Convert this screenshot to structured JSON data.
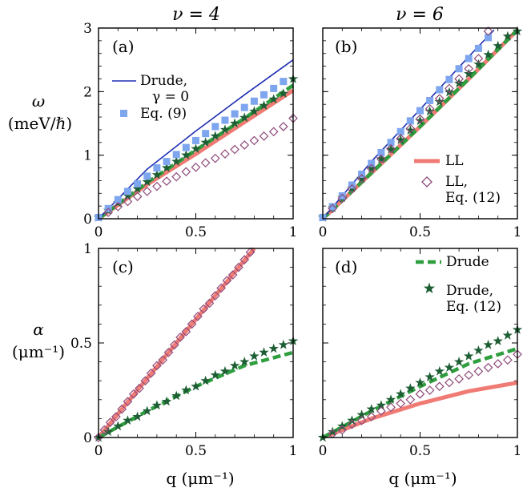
{
  "column_titles": [
    "ν = 4",
    "ν = 6"
  ],
  "ylabels": {
    "omega": {
      "symbol": "ω",
      "unit": "(meV/ℏ)"
    },
    "alpha": {
      "symbol": "α",
      "unit": "(μm⁻¹)"
    }
  },
  "xlabel": "q (μm⁻¹)",
  "legend_labels": {
    "drude_gamma0": [
      "Drude,",
      "γ = 0"
    ],
    "eq9": "Eq. (9)",
    "ll": "LL",
    "ll_eq12": [
      "LL,",
      "Eq. (12)"
    ],
    "drude": "Drude",
    "drude_eq12": [
      "Drude,",
      "Eq. (12)"
    ]
  },
  "colors": {
    "drude_gamma0": "#1f2fb3",
    "eq9": "#7ea6ef",
    "drude_eq12": "#1e5e34",
    "drude": "#2e9e3e",
    "ll": "#f07a74",
    "ll_eq12": "#8e4a7a"
  },
  "chart_data": [
    {
      "type": "line",
      "panel": "(a)",
      "title": "ν = 4",
      "xlim": [
        0,
        1
      ],
      "ylim": [
        0,
        3
      ],
      "xticks": [
        "0",
        "0.5",
        "1"
      ],
      "yticks": [
        "0",
        "1",
        "2",
        "3"
      ],
      "series": [
        {
          "key": "drude_gamma0",
          "name": "Drude, γ = 0",
          "style": "line",
          "x": [
            0,
            0.25,
            0.5,
            0.75,
            1.0
          ],
          "y": [
            0,
            0.78,
            1.38,
            1.95,
            2.5
          ]
        },
        {
          "key": "eq9",
          "name": "Eq. (9)",
          "style": "square",
          "x": [
            0,
            0.05,
            0.1,
            0.15,
            0.2,
            0.25,
            0.3,
            0.35,
            0.4,
            0.45,
            0.5,
            0.55,
            0.6,
            0.65,
            0.7,
            0.75,
            0.8,
            0.85,
            0.9,
            0.95
          ],
          "y": [
            0.02,
            0.16,
            0.3,
            0.43,
            0.55,
            0.67,
            0.8,
            0.9,
            1.01,
            1.12,
            1.23,
            1.34,
            1.45,
            1.55,
            1.65,
            1.75,
            1.85,
            1.95,
            2.05,
            2.16
          ]
        },
        {
          "key": "drude_eq12",
          "name": "Drude, Eq. (12)",
          "style": "star",
          "x": [
            0,
            0.05,
            0.1,
            0.15,
            0.2,
            0.25,
            0.3,
            0.35,
            0.4,
            0.45,
            0.5,
            0.55,
            0.6,
            0.65,
            0.7,
            0.75,
            0.8,
            0.85,
            0.9,
            0.95,
            1.0
          ],
          "y": [
            0.02,
            0.13,
            0.25,
            0.36,
            0.47,
            0.58,
            0.69,
            0.8,
            0.9,
            1.0,
            1.1,
            1.2,
            1.3,
            1.4,
            1.5,
            1.59,
            1.69,
            1.78,
            1.88,
            1.97,
            2.2
          ]
        },
        {
          "key": "drude",
          "name": "Drude",
          "style": "dash",
          "x": [
            0,
            0.25,
            0.5,
            0.75,
            1.0
          ],
          "y": [
            0,
            0.57,
            1.08,
            1.58,
            2.1
          ]
        },
        {
          "key": "ll",
          "name": "LL",
          "style": "thick",
          "x": [
            0,
            0.25,
            0.5,
            0.75,
            1.0
          ],
          "y": [
            0,
            0.54,
            1.02,
            1.52,
            2.02
          ]
        },
        {
          "key": "ll_eq12",
          "name": "LL, Eq. (12)",
          "style": "diamond",
          "x": [
            0.05,
            0.1,
            0.15,
            0.2,
            0.25,
            0.3,
            0.35,
            0.4,
            0.45,
            0.5,
            0.55,
            0.6,
            0.65,
            0.7,
            0.75,
            0.8,
            0.85,
            0.9,
            0.95,
            1.0
          ],
          "y": [
            0.1,
            0.19,
            0.27,
            0.35,
            0.43,
            0.51,
            0.59,
            0.66,
            0.74,
            0.81,
            0.88,
            0.95,
            1.02,
            1.09,
            1.16,
            1.23,
            1.3,
            1.37,
            1.45,
            1.58
          ]
        }
      ]
    },
    {
      "type": "line",
      "panel": "(b)",
      "title": "ν = 6",
      "xlim": [
        0,
        1
      ],
      "ylim": [
        0,
        3
      ],
      "xticks": [
        "0",
        "0.5",
        "1"
      ],
      "yticks": [],
      "series": [
        {
          "key": "drude_gamma0",
          "name": "Drude, γ = 0",
          "style": "line",
          "x": [
            0,
            0.25,
            0.5,
            0.75,
            0.88
          ],
          "y": [
            0,
            0.9,
            1.72,
            2.55,
            2.97
          ]
        },
        {
          "key": "eq9",
          "name": "Eq. (9)",
          "style": "square",
          "x": [
            0,
            0.05,
            0.1,
            0.15,
            0.2,
            0.25,
            0.3,
            0.35,
            0.4,
            0.45,
            0.5,
            0.55,
            0.6,
            0.65,
            0.7,
            0.75,
            0.8,
            0.85
          ],
          "y": [
            0.02,
            0.19,
            0.36,
            0.53,
            0.7,
            0.87,
            1.04,
            1.2,
            1.37,
            1.54,
            1.7,
            1.86,
            2.03,
            2.19,
            2.36,
            2.52,
            2.68,
            2.85
          ]
        },
        {
          "key": "drude_eq12",
          "name": "Drude, Eq. (12)",
          "style": "star",
          "x": [
            0,
            0.05,
            0.1,
            0.15,
            0.2,
            0.25,
            0.3,
            0.35,
            0.4,
            0.45,
            0.5,
            0.55,
            0.6,
            0.65,
            0.7,
            0.75,
            0.8,
            0.85,
            0.9,
            0.95,
            1.0
          ],
          "y": [
            0.02,
            0.17,
            0.33,
            0.48,
            0.63,
            0.79,
            0.94,
            1.09,
            1.24,
            1.39,
            1.54,
            1.69,
            1.84,
            1.99,
            2.13,
            2.28,
            2.43,
            2.58,
            2.72,
            2.87,
            2.95
          ]
        },
        {
          "key": "drude",
          "name": "Drude",
          "style": "dash",
          "x": [
            0,
            0.25,
            0.5,
            0.75,
            1.0
          ],
          "y": [
            0,
            0.72,
            1.45,
            2.2,
            2.97
          ]
        },
        {
          "key": "ll",
          "name": "LL",
          "style": "thick",
          "x": [
            0,
            0.25,
            0.5,
            0.75,
            1.0
          ],
          "y": [
            0,
            0.72,
            1.45,
            2.2,
            2.97
          ]
        },
        {
          "key": "ll_eq12",
          "name": "LL, Eq. (12)",
          "style": "diamond",
          "x": [
            0.05,
            0.1,
            0.15,
            0.2,
            0.25,
            0.3,
            0.35,
            0.4,
            0.45,
            0.5,
            0.55,
            0.6,
            0.65,
            0.7,
            0.75,
            0.8,
            0.85
          ],
          "y": [
            0.16,
            0.32,
            0.47,
            0.63,
            0.79,
            0.94,
            1.1,
            1.26,
            1.42,
            1.57,
            1.73,
            1.89,
            2.05,
            2.2,
            2.36,
            2.52,
            2.95
          ]
        }
      ]
    },
    {
      "type": "line",
      "panel": "(c)",
      "title": "",
      "xlim": [
        0,
        1
      ],
      "ylim": [
        0,
        1
      ],
      "xticks": [
        "0",
        "0.5",
        "1"
      ],
      "yticks": [
        "0",
        "0.5",
        "1"
      ],
      "series": [
        {
          "key": "ll",
          "name": "LL",
          "style": "thick",
          "x": [
            0,
            0.4,
            0.8
          ],
          "y": [
            0,
            0.5,
            1.0
          ]
        },
        {
          "key": "ll_eq12",
          "name": "LL, Eq. (12)",
          "style": "diamond",
          "x": [
            0.0,
            0.03,
            0.06,
            0.09,
            0.12,
            0.15,
            0.18,
            0.21,
            0.24,
            0.27,
            0.3,
            0.33,
            0.36,
            0.39,
            0.42,
            0.45,
            0.48,
            0.51,
            0.54,
            0.57,
            0.6,
            0.63,
            0.66,
            0.69,
            0.72,
            0.75,
            0.78
          ],
          "y": [
            0.0,
            0.04,
            0.08,
            0.11,
            0.15,
            0.19,
            0.23,
            0.26,
            0.3,
            0.34,
            0.38,
            0.41,
            0.45,
            0.49,
            0.53,
            0.56,
            0.6,
            0.64,
            0.68,
            0.71,
            0.75,
            0.79,
            0.83,
            0.86,
            0.9,
            0.94,
            0.98
          ]
        },
        {
          "key": "drude",
          "name": "Drude",
          "style": "dash",
          "x": [
            0,
            0.25,
            0.5,
            0.75,
            1.0
          ],
          "y": [
            0,
            0.14,
            0.27,
            0.38,
            0.45
          ]
        },
        {
          "key": "drude_eq12",
          "name": "Drude, Eq. (12)",
          "style": "star",
          "x": [
            0,
            0.05,
            0.1,
            0.15,
            0.2,
            0.25,
            0.3,
            0.35,
            0.4,
            0.45,
            0.5,
            0.55,
            0.6,
            0.65,
            0.7,
            0.75,
            0.8,
            0.85,
            0.9,
            0.95,
            1.0
          ],
          "y": [
            0.0,
            0.03,
            0.06,
            0.09,
            0.11,
            0.14,
            0.17,
            0.19,
            0.22,
            0.25,
            0.27,
            0.3,
            0.33,
            0.35,
            0.38,
            0.4,
            0.43,
            0.45,
            0.47,
            0.49,
            0.51
          ]
        }
      ]
    },
    {
      "type": "line",
      "panel": "(d)",
      "title": "",
      "xlim": [
        0,
        1
      ],
      "ylim": [
        0,
        1
      ],
      "xticks": [
        "0",
        "0.5",
        "1"
      ],
      "yticks": [],
      "series": [
        {
          "key": "ll",
          "name": "LL",
          "style": "thick",
          "x": [
            0,
            0.25,
            0.5,
            0.75,
            1.0
          ],
          "y": [
            0,
            0.1,
            0.18,
            0.245,
            0.29
          ]
        },
        {
          "key": "ll_eq12",
          "name": "LL, Eq. (12)",
          "style": "diamond",
          "x": [
            0.05,
            0.1,
            0.15,
            0.2,
            0.25,
            0.3,
            0.35,
            0.4,
            0.45,
            0.5,
            0.55,
            0.6,
            0.65,
            0.7,
            0.75,
            0.8,
            0.85,
            0.9,
            0.95,
            1.0
          ],
          "y": [
            0.02,
            0.04,
            0.07,
            0.09,
            0.11,
            0.14,
            0.16,
            0.18,
            0.2,
            0.23,
            0.25,
            0.27,
            0.29,
            0.31,
            0.33,
            0.35,
            0.37,
            0.39,
            0.41,
            0.44
          ]
        },
        {
          "key": "drude",
          "name": "Drude",
          "style": "dash",
          "x": [
            0,
            0.25,
            0.5,
            0.75,
            1.0
          ],
          "y": [
            0,
            0.14,
            0.27,
            0.39,
            0.47
          ]
        },
        {
          "key": "drude_eq12",
          "name": "Drude, Eq. (12)",
          "style": "star",
          "x": [
            0,
            0.05,
            0.1,
            0.15,
            0.2,
            0.25,
            0.3,
            0.35,
            0.4,
            0.45,
            0.5,
            0.55,
            0.6,
            0.65,
            0.7,
            0.75,
            0.8,
            0.85,
            0.9,
            0.95,
            1.0
          ],
          "y": [
            0.0,
            0.03,
            0.06,
            0.09,
            0.12,
            0.15,
            0.17,
            0.2,
            0.23,
            0.26,
            0.29,
            0.32,
            0.35,
            0.37,
            0.4,
            0.43,
            0.46,
            0.49,
            0.51,
            0.54,
            0.57
          ]
        }
      ]
    }
  ]
}
